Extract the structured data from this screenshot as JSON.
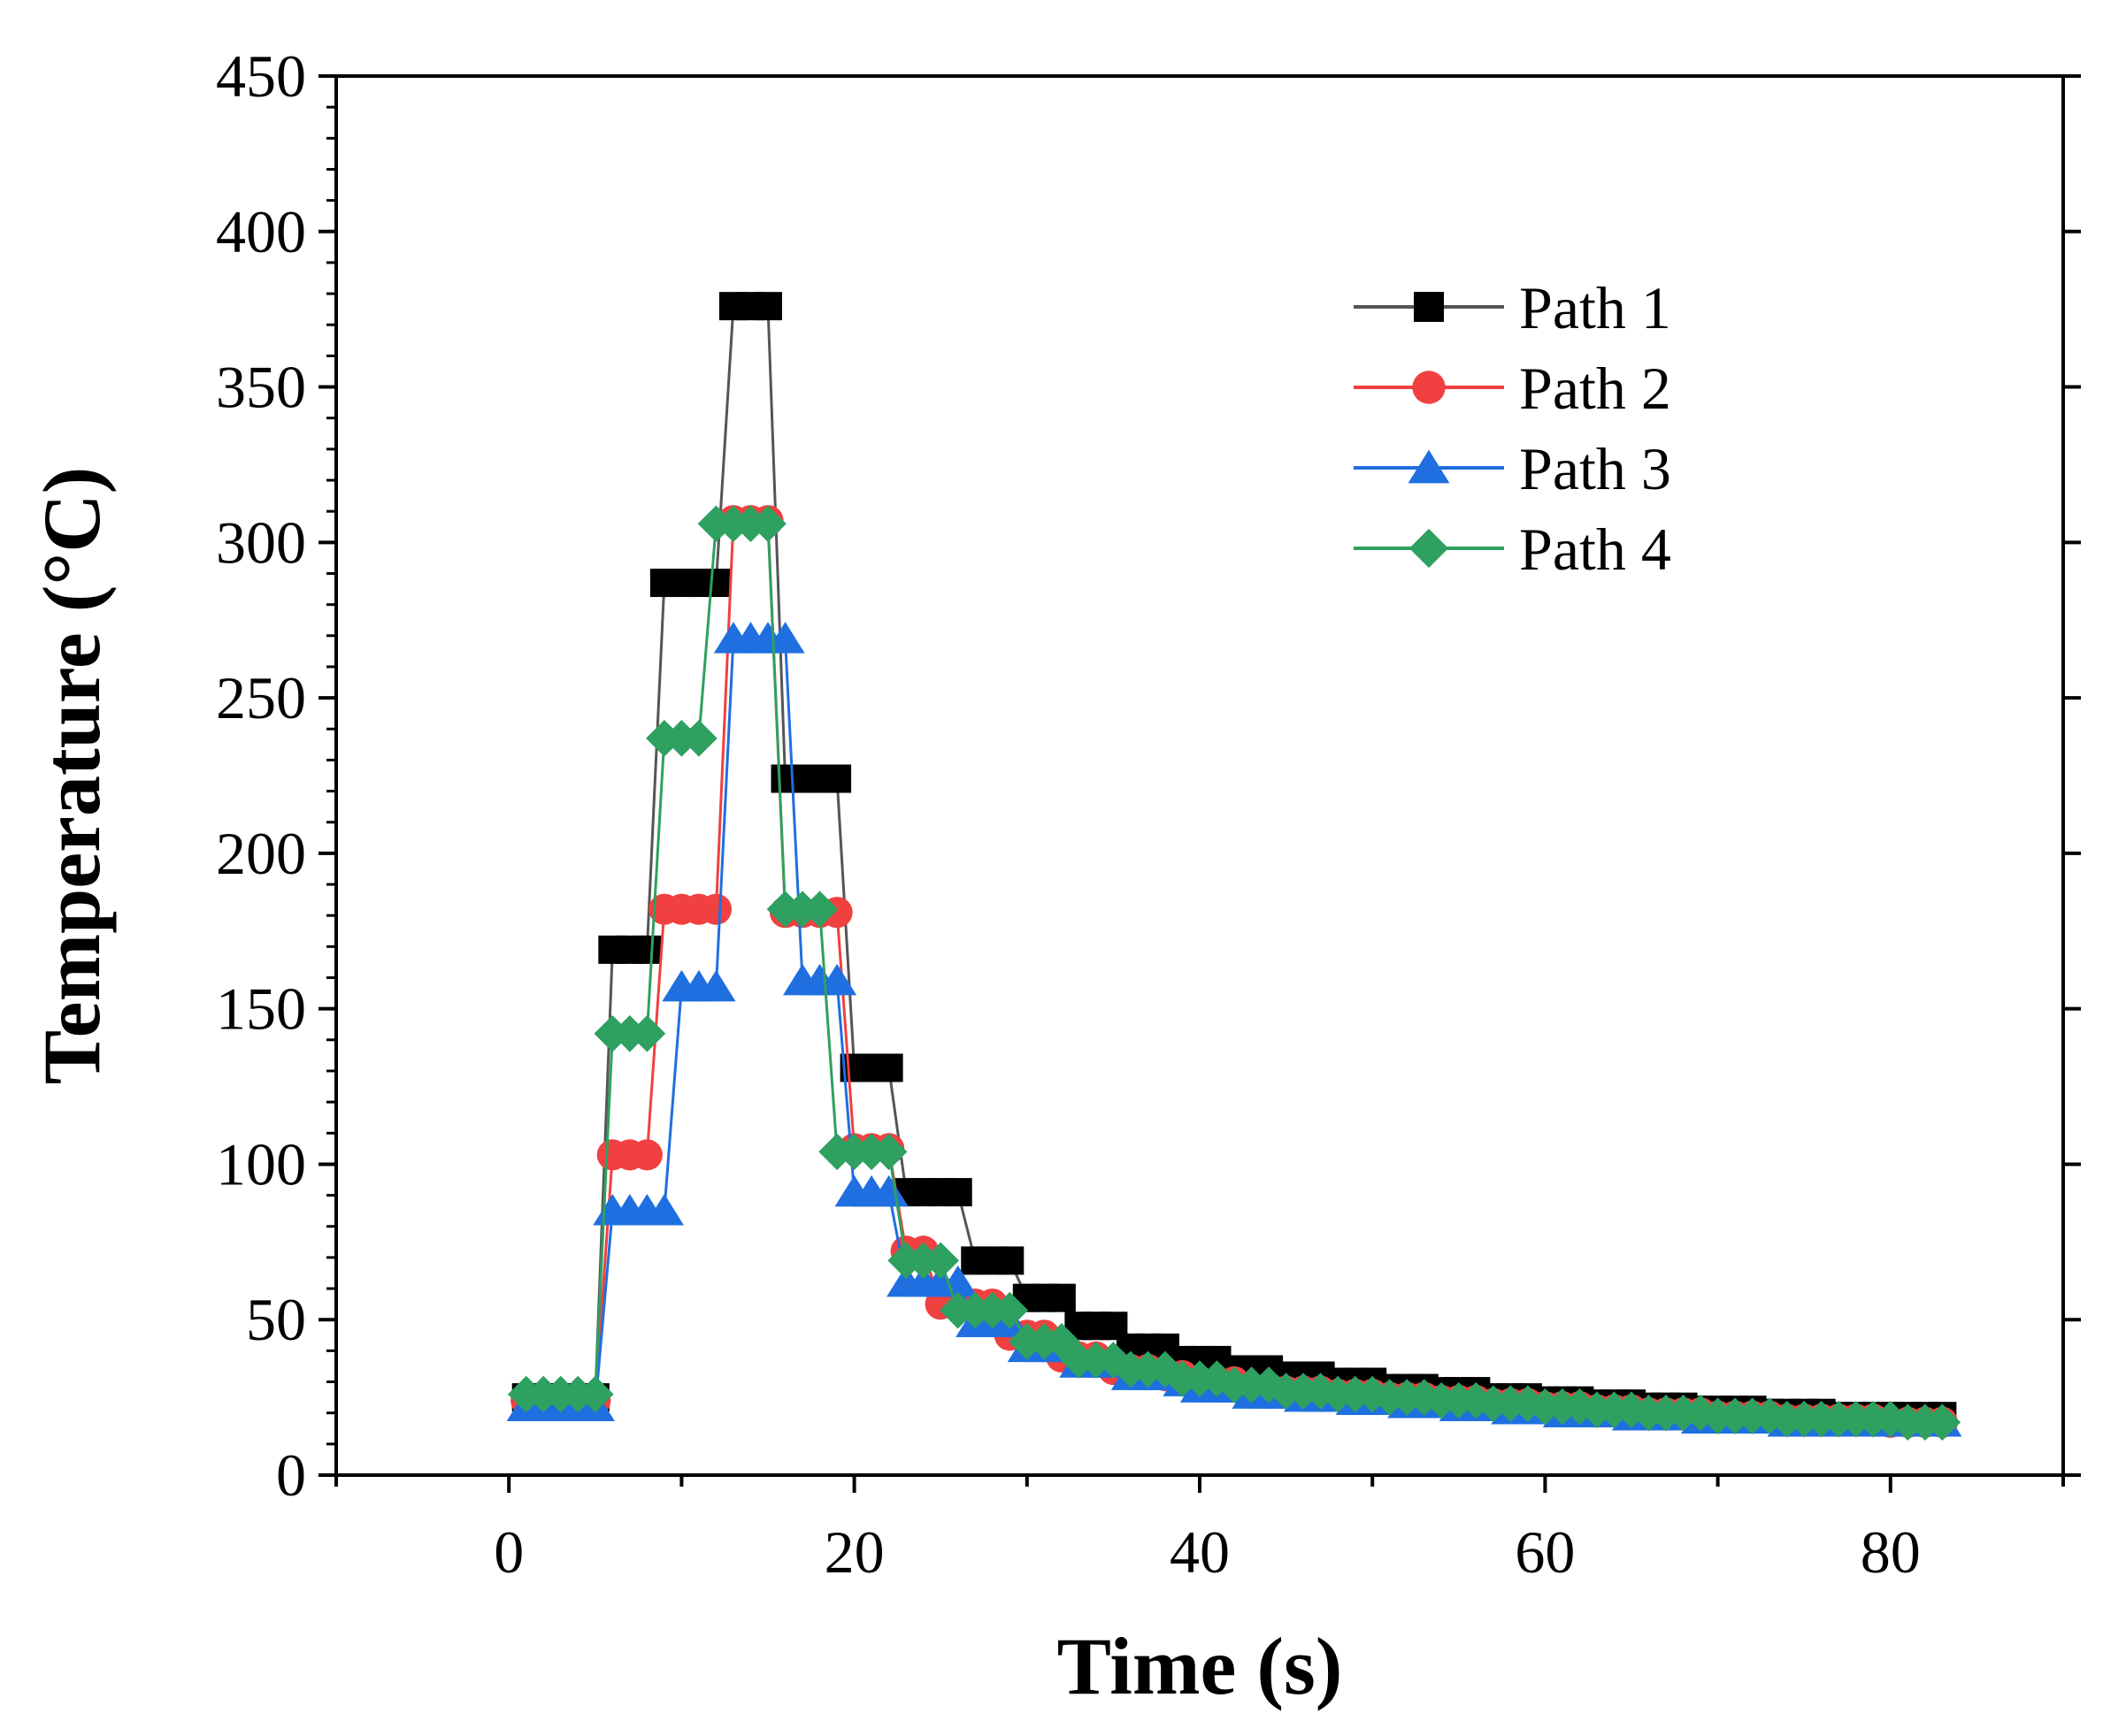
{
  "chart_data": {
    "type": "line",
    "title": "",
    "xlabel": "Time (s)",
    "ylabel": "Temperature (°C)",
    "xlim": [
      -10,
      90
    ],
    "ylim": [
      0,
      450
    ],
    "xticks": [
      0,
      20,
      40,
      60,
      80
    ],
    "yticks": [
      0,
      50,
      100,
      150,
      200,
      250,
      300,
      350,
      400,
      450
    ],
    "x_tick_labels": [
      "0",
      "20",
      "40",
      "60",
      "80"
    ],
    "y_tick_labels": [
      "0",
      "50",
      "100",
      "150",
      "200",
      "250",
      "300",
      "350",
      "400",
      "450"
    ],
    "grid": false,
    "legend_position": "top-right",
    "x": [
      1,
      2,
      3,
      4,
      5,
      6,
      7,
      8,
      9,
      10,
      11,
      12,
      13,
      14,
      15,
      16,
      17,
      18,
      19,
      20,
      21,
      22,
      23,
      24,
      25,
      26,
      27,
      28,
      29,
      30,
      31,
      32,
      33,
      34,
      35,
      36,
      37,
      38,
      39,
      40,
      41,
      42,
      43,
      44,
      45,
      46,
      47,
      48,
      49,
      50,
      51,
      52,
      53,
      54,
      55,
      56,
      57,
      58,
      59,
      60,
      61,
      62,
      63,
      64,
      65,
      66,
      67,
      68,
      69,
      70,
      71,
      72,
      73,
      74,
      75,
      76,
      77,
      78,
      79,
      80,
      81,
      82,
      83
    ],
    "series": [
      {
        "name": "Path 1",
        "color": "#000000",
        "line_color": "#555555",
        "marker": "square",
        "values": [
          25,
          25,
          25,
          25,
          25,
          169,
          169,
          169,
          287,
          287,
          287,
          287,
          376,
          376,
          376,
          224,
          224,
          224,
          224,
          131,
          131,
          131,
          91,
          91,
          91,
          91,
          69,
          69,
          69,
          57,
          57,
          57,
          48,
          48,
          48,
          41,
          41,
          41,
          37,
          37,
          37,
          34,
          34,
          34,
          32,
          32,
          32,
          30,
          30,
          30,
          28,
          28,
          28,
          27,
          27,
          27,
          25,
          25,
          25,
          24,
          24,
          24,
          23,
          23,
          23,
          22,
          22,
          22,
          21,
          21,
          21,
          21,
          20,
          20,
          20,
          20,
          19,
          19,
          19,
          19,
          19,
          19,
          19
        ]
      },
      {
        "name": "Path 2",
        "color": "#f04040",
        "line_color": "#f04040",
        "marker": "circle",
        "values": [
          24,
          24,
          24,
          24,
          24,
          103,
          103,
          103,
          182,
          182,
          182,
          182,
          307,
          307,
          307,
          181,
          181,
          181,
          181,
          105,
          105,
          105,
          72,
          72,
          55,
          55,
          55,
          55,
          45,
          45,
          45,
          38,
          38,
          38,
          34,
          34,
          34,
          32,
          32,
          30,
          30,
          30,
          28,
          28,
          27,
          27,
          27,
          26,
          26,
          26,
          25,
          25,
          25,
          24,
          24,
          24,
          23,
          23,
          23,
          22,
          22,
          22,
          21,
          21,
          21,
          20,
          20,
          20,
          20,
          19,
          19,
          19,
          19,
          18,
          18,
          18,
          18,
          18,
          18,
          17,
          17,
          17,
          17
        ]
      },
      {
        "name": "Path 3",
        "color": "#1f6fe0",
        "line_color": "#1f6fe0",
        "marker": "triangle",
        "values": [
          22,
          22,
          22,
          22,
          22,
          85,
          85,
          85,
          85,
          157,
          157,
          157,
          269,
          269,
          269,
          269,
          159,
          159,
          159,
          91,
          91,
          91,
          62,
          62,
          62,
          62,
          49,
          49,
          49,
          41,
          41,
          41,
          36,
          36,
          36,
          32,
          32,
          32,
          30,
          28,
          28,
          28,
          26,
          26,
          26,
          25,
          25,
          25,
          24,
          24,
          24,
          23,
          23,
          23,
          22,
          22,
          22,
          21,
          21,
          21,
          20,
          20,
          20,
          20,
          19,
          19,
          19,
          19,
          18,
          18,
          18,
          18,
          18,
          17,
          17,
          17,
          17,
          17,
          17,
          17,
          17,
          17,
          17
        ]
      },
      {
        "name": "Path 4",
        "color": "#2ea060",
        "line_color": "#2ea060",
        "marker": "diamond",
        "values": [
          26,
          26,
          26,
          26,
          26,
          142,
          142,
          142,
          237,
          237,
          237,
          306,
          306,
          306,
          306,
          182,
          182,
          182,
          104,
          104,
          104,
          104,
          69,
          69,
          69,
          53,
          53,
          53,
          53,
          43,
          43,
          43,
          37,
          37,
          37,
          34,
          34,
          34,
          31,
          31,
          31,
          29,
          29,
          29,
          27,
          27,
          27,
          26,
          26,
          26,
          25,
          25,
          25,
          24,
          24,
          24,
          23,
          23,
          23,
          22,
          22,
          22,
          21,
          21,
          21,
          20,
          20,
          20,
          20,
          19,
          19,
          19,
          19,
          18,
          18,
          18,
          18,
          18,
          18,
          18,
          17,
          17,
          17
        ]
      }
    ]
  }
}
